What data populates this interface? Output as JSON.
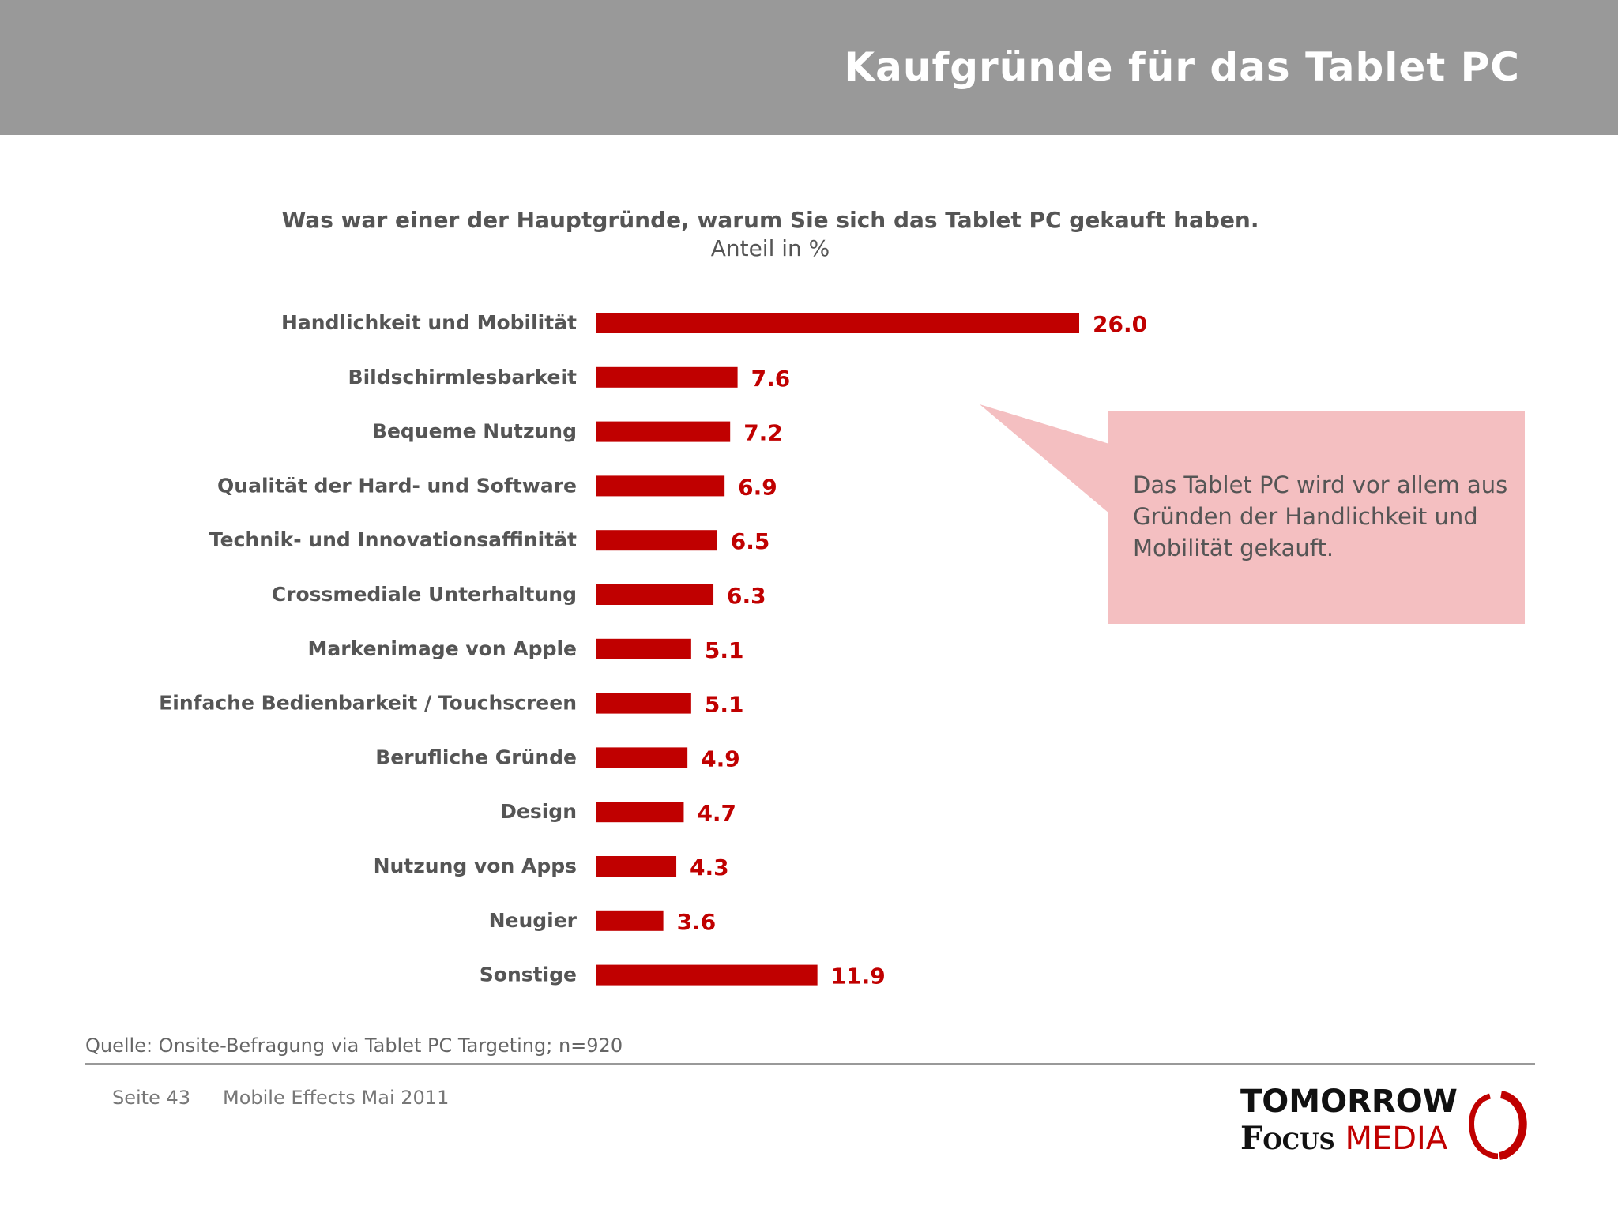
{
  "header": {
    "title": "Kaufgründe für das Tablet PC"
  },
  "chart_data": {
    "type": "bar",
    "orientation": "horizontal",
    "title": "Was war einer der Hauptgründe, warum Sie sich das Tablet PC gekauft haben.",
    "subtitle": "Anteil in %",
    "categories": [
      "Handlichkeit und Mobilität",
      "Bildschirmlesbarkeit",
      "Bequeme Nutzung",
      "Qualität der Hard- und Software",
      "Technik- und Innovationsaffinität",
      "Crossmediale Unterhaltung",
      "Markenimage von Apple",
      "Einfache Bedienbarkeit / Touchscreen",
      "Berufliche Gründe",
      "Design",
      "Nutzung von Apps",
      "Neugier",
      "Sonstige"
    ],
    "values": [
      26.0,
      7.6,
      7.2,
      6.9,
      6.5,
      6.3,
      5.1,
      5.1,
      4.9,
      4.7,
      4.3,
      3.6,
      11.9
    ],
    "value_labels": [
      "26.0",
      "7.6",
      "7.2",
      "6.9",
      "6.5",
      "6.3",
      "5.1",
      "5.1",
      "4.9",
      "4.7",
      "4.3",
      "3.6",
      "11.9"
    ],
    "xlim": [
      0,
      26.0
    ],
    "bar_color": "#c00000",
    "grid": false
  },
  "callout": {
    "text": "Das Tablet PC wird vor allem aus Gründen der Handlichkeit und Mobilität gekauft.",
    "fill_color": "#f4bfc1"
  },
  "footer": {
    "source": "Quelle: Onsite-Befragung via Tablet PC Targeting; n=920",
    "page": "Seite 43",
    "document": "Mobile Effects Mai 2011"
  },
  "logo": {
    "line1": "TOMORROW",
    "line2a": "Focus",
    "line2b": "MEDIA",
    "accent_color": "#c00000"
  }
}
